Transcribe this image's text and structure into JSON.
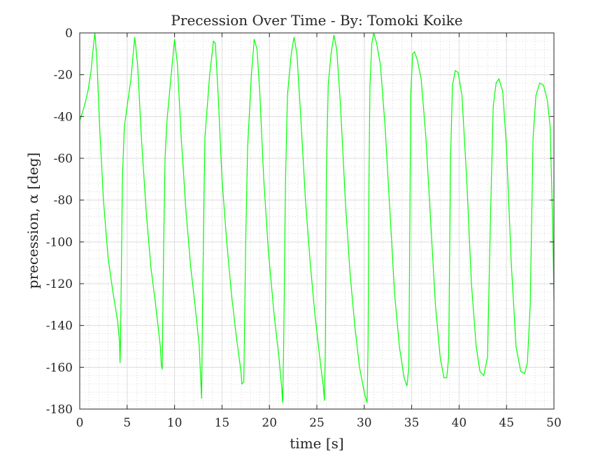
{
  "chart_data": {
    "type": "line",
    "title": "Precession Over Time - By: Tomoki Koike",
    "xlabel": "time [s]",
    "ylabel": "precession, α [deg]",
    "xlim": [
      0,
      50
    ],
    "ylim": [
      -180,
      0
    ],
    "xticks": [
      0,
      5,
      10,
      15,
      20,
      25,
      30,
      35,
      40,
      45,
      50
    ],
    "yticks": [
      0,
      -20,
      -40,
      -60,
      -80,
      -100,
      -120,
      -140,
      -160,
      -180
    ],
    "xtick_labels": [
      "0",
      "5",
      "10",
      "15",
      "20",
      "25",
      "30",
      "35",
      "40",
      "45",
      "50"
    ],
    "ytick_labels": [
      "0",
      "-20",
      "-40",
      "-60",
      "-80",
      "-100",
      "-120",
      "-140",
      "-160",
      "-180"
    ],
    "grid": true,
    "minor_grid": true,
    "series": [
      {
        "color": "#00ff00",
        "points": [
          [
            0.0,
            -42
          ],
          [
            0.3,
            -38
          ],
          [
            0.6,
            -33
          ],
          [
            0.9,
            -27
          ],
          [
            1.2,
            -18
          ],
          [
            1.4,
            -8
          ],
          [
            1.6,
            0
          ],
          [
            1.8,
            -12
          ],
          [
            2.1,
            -45
          ],
          [
            2.5,
            -80
          ],
          [
            3.0,
            -108
          ],
          [
            3.5,
            -124
          ],
          [
            4.0,
            -138
          ],
          [
            4.2,
            -148
          ],
          [
            4.25,
            -158
          ],
          [
            4.3,
            -148
          ],
          [
            4.4,
            -110
          ],
          [
            4.5,
            -70
          ],
          [
            4.7,
            -45
          ],
          [
            5.0,
            -35
          ],
          [
            5.4,
            -22
          ],
          [
            5.8,
            -2
          ],
          [
            6.1,
            -15
          ],
          [
            6.5,
            -50
          ],
          [
            7.0,
            -85
          ],
          [
            7.5,
            -112
          ],
          [
            8.0,
            -130
          ],
          [
            8.5,
            -150
          ],
          [
            8.6,
            -159
          ],
          [
            8.7,
            -161
          ],
          [
            8.85,
            -100
          ],
          [
            9.0,
            -60
          ],
          [
            9.2,
            -42
          ],
          [
            9.6,
            -22
          ],
          [
            10.0,
            -3
          ],
          [
            10.3,
            -15
          ],
          [
            10.7,
            -50
          ],
          [
            11.2,
            -85
          ],
          [
            11.7,
            -112
          ],
          [
            12.2,
            -132
          ],
          [
            12.6,
            -150
          ],
          [
            12.8,
            -170
          ],
          [
            12.85,
            -175
          ],
          [
            12.95,
            -130
          ],
          [
            13.2,
            -50
          ],
          [
            13.4,
            -38
          ],
          [
            13.7,
            -20
          ],
          [
            14.1,
            -4
          ],
          [
            14.3,
            -5
          ],
          [
            14.6,
            -30
          ],
          [
            15.0,
            -70
          ],
          [
            15.5,
            -100
          ],
          [
            16.0,
            -125
          ],
          [
            16.5,
            -145
          ],
          [
            17.0,
            -162
          ],
          [
            17.1,
            -168
          ],
          [
            17.3,
            -167
          ],
          [
            17.5,
            -100
          ],
          [
            17.7,
            -55
          ],
          [
            18.1,
            -20
          ],
          [
            18.4,
            -3
          ],
          [
            18.7,
            -8
          ],
          [
            19.0,
            -30
          ],
          [
            19.4,
            -70
          ],
          [
            19.9,
            -105
          ],
          [
            20.5,
            -135
          ],
          [
            21.0,
            -155
          ],
          [
            21.3,
            -170
          ],
          [
            21.4,
            -177
          ],
          [
            21.5,
            -150
          ],
          [
            21.7,
            -70
          ],
          [
            21.9,
            -30
          ],
          [
            22.3,
            -10
          ],
          [
            22.6,
            -2
          ],
          [
            22.9,
            -10
          ],
          [
            23.3,
            -40
          ],
          [
            23.8,
            -80
          ],
          [
            24.3,
            -110
          ],
          [
            24.8,
            -135
          ],
          [
            25.3,
            -155
          ],
          [
            25.7,
            -170
          ],
          [
            25.8,
            -176
          ],
          [
            25.9,
            -150
          ],
          [
            26.0,
            -70
          ],
          [
            26.2,
            -25
          ],
          [
            26.5,
            -10
          ],
          [
            26.8,
            -1
          ],
          [
            27.1,
            -8
          ],
          [
            27.5,
            -35
          ],
          [
            28.0,
            -80
          ],
          [
            28.5,
            -115
          ],
          [
            29.0,
            -140
          ],
          [
            29.5,
            -160
          ],
          [
            30.0,
            -172
          ],
          [
            30.3,
            -177
          ],
          [
            30.4,
            -150
          ],
          [
            30.5,
            -70
          ],
          [
            30.6,
            -25
          ],
          [
            30.8,
            -5
          ],
          [
            31.0,
            0
          ],
          [
            31.3,
            -5
          ],
          [
            31.7,
            -15
          ],
          [
            32.2,
            -45
          ],
          [
            32.7,
            -85
          ],
          [
            33.2,
            -125
          ],
          [
            33.7,
            -150
          ],
          [
            34.2,
            -165
          ],
          [
            34.5,
            -169
          ],
          [
            34.7,
            -160
          ],
          [
            34.9,
            -30
          ],
          [
            35.1,
            -10
          ],
          [
            35.3,
            -9
          ],
          [
            35.6,
            -13
          ],
          [
            36.0,
            -22
          ],
          [
            36.5,
            -50
          ],
          [
            37.0,
            -90
          ],
          [
            37.5,
            -130
          ],
          [
            38.0,
            -155
          ],
          [
            38.4,
            -165
          ],
          [
            38.7,
            -165
          ],
          [
            38.9,
            -155
          ],
          [
            39.1,
            -60
          ],
          [
            39.3,
            -25
          ],
          [
            39.6,
            -18
          ],
          [
            39.9,
            -19
          ],
          [
            40.3,
            -30
          ],
          [
            40.8,
            -70
          ],
          [
            41.3,
            -120
          ],
          [
            41.8,
            -150
          ],
          [
            42.2,
            -162
          ],
          [
            42.6,
            -164
          ],
          [
            43.0,
            -155
          ],
          [
            43.3,
            -90
          ],
          [
            43.6,
            -35
          ],
          [
            43.9,
            -24
          ],
          [
            44.2,
            -22
          ],
          [
            44.6,
            -28
          ],
          [
            45.0,
            -55
          ],
          [
            45.5,
            -110
          ],
          [
            46.0,
            -150
          ],
          [
            46.5,
            -162
          ],
          [
            46.9,
            -163
          ],
          [
            47.2,
            -158
          ],
          [
            47.5,
            -130
          ],
          [
            47.8,
            -50
          ],
          [
            48.1,
            -30
          ],
          [
            48.5,
            -24
          ],
          [
            48.9,
            -25
          ],
          [
            49.3,
            -32
          ],
          [
            49.6,
            -45
          ],
          [
            49.8,
            -80
          ],
          [
            49.9,
            -100
          ],
          [
            50.0,
            -127
          ]
        ]
      }
    ]
  }
}
